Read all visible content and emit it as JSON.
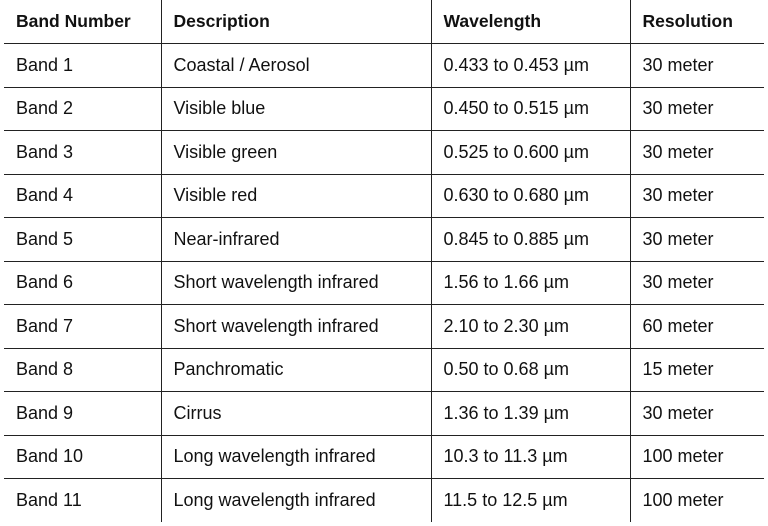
{
  "table": {
    "headers": [
      "Band Number",
      "Description",
      "Wavelength",
      "Resolution"
    ],
    "rows": [
      [
        "Band 1",
        "Coastal / Aerosol",
        "0.433 to 0.453 µm",
        "30 meter"
      ],
      [
        "Band 2",
        "Visible blue",
        "0.450 to 0.515 µm",
        "30 meter"
      ],
      [
        "Band 3",
        "Visible green",
        "0.525 to 0.600 µm",
        "30 meter"
      ],
      [
        "Band 4",
        "Visible red",
        "0.630 to 0.680 µm",
        "30 meter"
      ],
      [
        "Band 5",
        "Near-infrared",
        "0.845 to 0.885 µm",
        "30 meter"
      ],
      [
        "Band 6",
        "Short wavelength infrared",
        "1.56 to 1.66 µm",
        "30 meter"
      ],
      [
        "Band 7",
        "Short wavelength infrared",
        "2.10 to 2.30 µm",
        "60 meter"
      ],
      [
        "Band 8",
        "Panchromatic",
        "0.50 to 0.68 µm",
        "15 meter"
      ],
      [
        "Band 9",
        "Cirrus",
        "1.36 to 1.39 µm",
        "30 meter"
      ],
      [
        "Band 10",
        "Long wavelength infrared",
        "10.3 to 11.3 µm",
        "100 meter"
      ],
      [
        "Band 11",
        "Long wavelength infrared",
        "11.5 to 12.5 µm",
        "100 meter"
      ]
    ]
  }
}
